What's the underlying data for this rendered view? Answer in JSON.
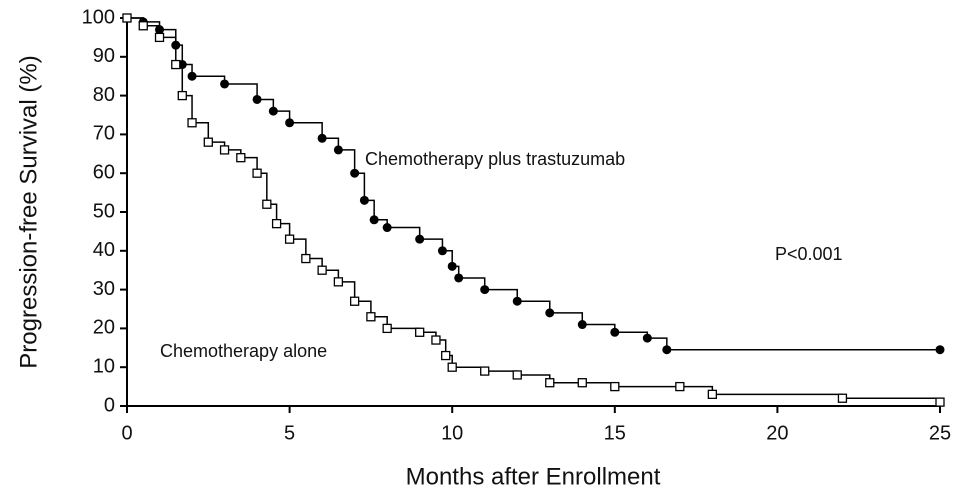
{
  "chart_data": {
    "type": "survival",
    "xlabel": "Months after Enrollment",
    "ylabel": "Progression-free Survival (%)",
    "xlim": [
      0,
      25
    ],
    "ylim": [
      0,
      100
    ],
    "xticks": [
      0,
      5,
      10,
      15,
      20,
      25
    ],
    "yticks": [
      0,
      10,
      20,
      30,
      40,
      50,
      60,
      70,
      80,
      90,
      100
    ],
    "annotations": [
      "P<0.001"
    ],
    "series": [
      {
        "name": "Chemotherapy plus trastuzumab",
        "color": "#000000",
        "marker": "circle",
        "x": [
          0,
          0.5,
          1,
          1.5,
          1.7,
          2,
          3,
          4,
          4.5,
          5,
          6,
          6.5,
          7,
          7.3,
          7.6,
          8,
          9,
          9.7,
          10,
          10.2,
          11,
          12,
          13,
          14,
          15,
          16,
          16.6,
          25
        ],
        "values": [
          100,
          99,
          97,
          93,
          88,
          85,
          83,
          79,
          76,
          73,
          69,
          66,
          60,
          53,
          48,
          46,
          43,
          40,
          36,
          33,
          30,
          27,
          24,
          21,
          19,
          17.5,
          14.5,
          14.5
        ]
      },
      {
        "name": "Chemotherapy alone",
        "color": "#000000",
        "marker": "square",
        "x": [
          0,
          0.5,
          1,
          1.5,
          1.7,
          2,
          2.5,
          3,
          3.5,
          4,
          4.3,
          4.6,
          5,
          5.5,
          6,
          6.5,
          7,
          7.5,
          8,
          9,
          9.5,
          9.8,
          10,
          11,
          12,
          13,
          14,
          15,
          17,
          18,
          22,
          25
        ],
        "values": [
          100,
          98,
          95,
          88,
          80,
          73,
          68,
          66,
          64,
          60,
          52,
          47,
          43,
          38,
          35,
          32,
          27,
          23,
          20,
          19,
          17,
          13,
          10,
          9,
          8,
          6,
          6,
          5,
          5,
          3,
          2,
          1
        ]
      }
    ]
  }
}
